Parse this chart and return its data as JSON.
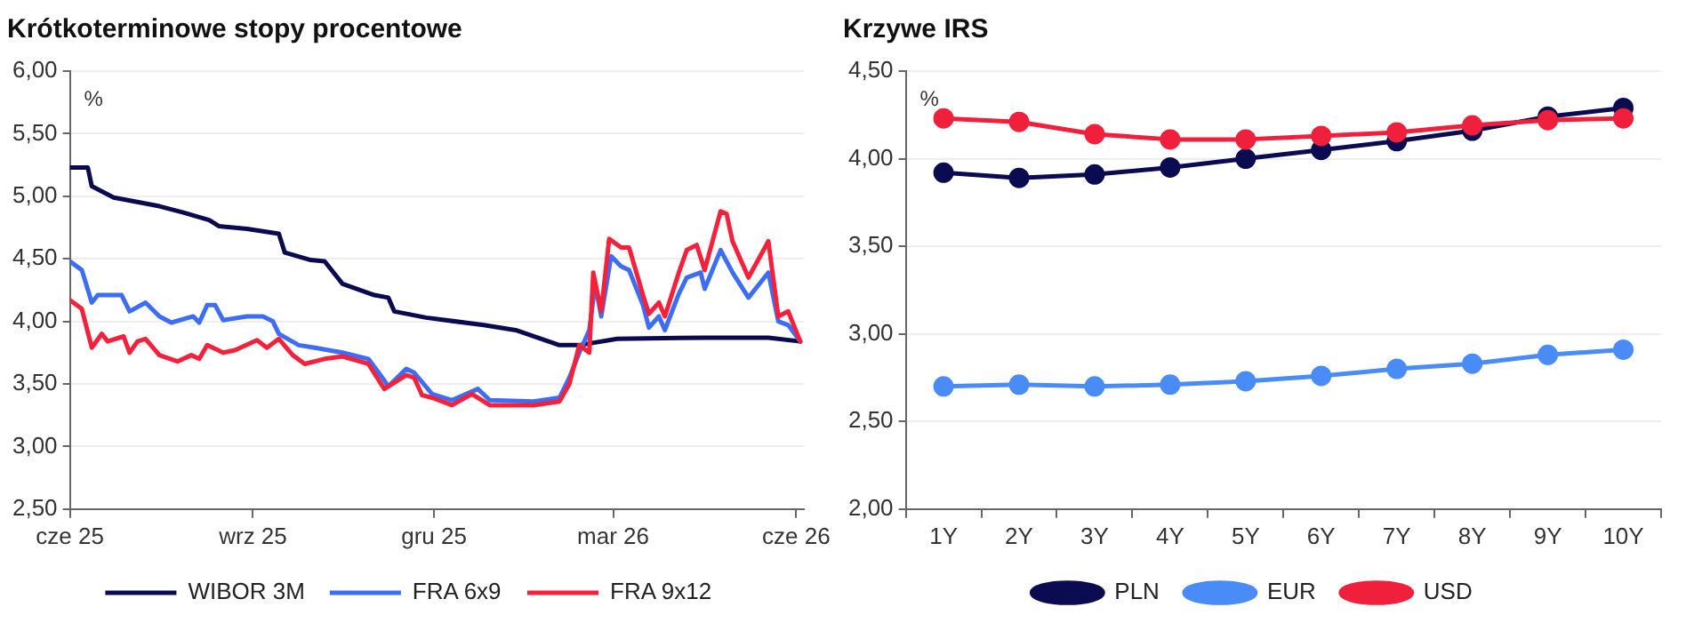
{
  "chart_data": [
    {
      "type": "line",
      "title": "Krótkoterminowe stopy procentowe",
      "annotations": [
        "%"
      ],
      "xlim": [
        "2025-06-01",
        "2026-06-05"
      ],
      "xticks": [
        {
          "value": "2025-06-01",
          "label": "cze 25"
        },
        {
          "value": "2025-09-01",
          "label": "wrz 25"
        },
        {
          "value": "2025-12-01",
          "label": "gru 25"
        },
        {
          "value": "2026-03-01",
          "label": "mar 26"
        },
        {
          "value": "2026-06-01",
          "label": "cze 26"
        }
      ],
      "ylim": [
        2.5,
        6
      ],
      "yticks": [
        {
          "value": 2.5,
          "label": "2,50"
        },
        {
          "value": 3,
          "label": "3,00"
        },
        {
          "value": 3.5,
          "label": "3,50"
        },
        {
          "value": 4,
          "label": "4,00"
        },
        {
          "value": 4.5,
          "label": "4,50"
        },
        {
          "value": 5,
          "label": "5,00"
        },
        {
          "value": 5.5,
          "label": "5,50"
        },
        {
          "value": 6,
          "label": "6,00"
        }
      ],
      "grid": "y",
      "legend": "bottom",
      "marker": "none",
      "line_style": "solid",
      "series": [
        {
          "name": "WIBOR 3M",
          "color": "#0a0a50",
          "x": [
            "2025-06-01",
            "2025-06-10",
            "2025-06-12",
            "2025-06-23",
            "2025-07-16",
            "2025-07-28",
            "2025-08-10",
            "2025-08-15",
            "2025-08-29",
            "2025-09-14",
            "2025-09-17",
            "2025-09-30",
            "2025-10-07",
            "2025-10-16",
            "2025-11-01",
            "2025-11-08",
            "2025-11-11",
            "2025-11-27",
            "2025-12-26",
            "2026-01-11",
            "2026-02-02",
            "2026-02-12",
            "2026-03-03",
            "2026-04-17",
            "2026-05-18",
            "2026-06-03"
          ],
          "values": [
            5.23,
            5.23,
            5.08,
            4.99,
            4.92,
            4.87,
            4.81,
            4.76,
            4.74,
            4.7,
            4.55,
            4.49,
            4.48,
            4.3,
            4.21,
            4.19,
            4.08,
            4.03,
            3.97,
            3.93,
            3.81,
            3.81,
            3.86,
            3.87,
            3.87,
            3.84
          ]
        },
        {
          "name": "FRA 6x9",
          "color": "#3d6cf5",
          "x": [
            "2025-06-01",
            "2025-06-07",
            "2025-06-12",
            "2025-06-15",
            "2025-06-27",
            "2025-07-01",
            "2025-07-09",
            "2025-07-16",
            "2025-07-22",
            "2025-08-02",
            "2025-08-05",
            "2025-08-09",
            "2025-08-13",
            "2025-08-17",
            "2025-08-29",
            "2025-09-06",
            "2025-09-11",
            "2025-09-14",
            "2025-09-24",
            "2025-10-02",
            "2025-10-16",
            "2025-10-29",
            "2025-11-05",
            "2025-11-08",
            "2025-11-17",
            "2025-11-21",
            "2025-11-30",
            "2025-12-10",
            "2025-12-23",
            "2025-12-29",
            "2026-01-20",
            "2026-02-02",
            "2026-02-07",
            "2026-02-12",
            "2026-02-17",
            "2026-02-20",
            "2026-02-23",
            "2026-02-28",
            "2026-03-05",
            "2026-03-09",
            "2026-03-16",
            "2026-03-19",
            "2026-03-24",
            "2026-03-27",
            "2026-04-03",
            "2026-04-07",
            "2026-04-14",
            "2026-04-16",
            "2026-04-24",
            "2026-04-30",
            "2026-05-08",
            "2026-05-18",
            "2026-05-23",
            "2026-05-28",
            "2026-06-03"
          ],
          "values": [
            4.48,
            4.41,
            4.15,
            4.21,
            4.21,
            4.08,
            4.15,
            4.04,
            3.99,
            4.04,
            3.99,
            4.13,
            4.13,
            4.01,
            4.04,
            4.04,
            4.0,
            3.9,
            3.81,
            3.79,
            3.75,
            3.7,
            3.55,
            3.48,
            3.62,
            3.59,
            3.42,
            3.37,
            3.46,
            3.37,
            3.36,
            3.39,
            3.55,
            3.75,
            3.93,
            4.3,
            4.04,
            4.52,
            4.44,
            4.41,
            4.13,
            3.95,
            4.04,
            3.93,
            4.22,
            4.35,
            4.39,
            4.26,
            4.57,
            4.39,
            4.19,
            4.39,
            4.0,
            3.97,
            3.84
          ]
        },
        {
          "name": "FRA 9x12",
          "color": "#f5203a",
          "x": [
            "2025-06-01",
            "2025-06-07",
            "2025-06-12",
            "2025-06-17",
            "2025-06-20",
            "2025-06-28",
            "2025-07-01",
            "2025-07-05",
            "2025-07-09",
            "2025-07-16",
            "2025-07-25",
            "2025-08-01",
            "2025-08-05",
            "2025-08-09",
            "2025-08-17",
            "2025-08-23",
            "2025-09-03",
            "2025-09-08",
            "2025-09-14",
            "2025-09-21",
            "2025-09-27",
            "2025-10-07",
            "2025-10-16",
            "2025-10-29",
            "2025-11-06",
            "2025-11-17",
            "2025-11-21",
            "2025-11-25",
            "2025-11-30",
            "2025-12-10",
            "2025-12-20",
            "2025-12-29",
            "2026-01-20",
            "2026-02-02",
            "2026-02-07",
            "2026-02-12",
            "2026-02-17",
            "2026-02-19",
            "2026-02-23",
            "2026-02-27",
            "2026-03-05",
            "2026-03-09",
            "2026-03-16",
            "2026-03-19",
            "2026-03-24",
            "2026-03-27",
            "2026-04-03",
            "2026-04-07",
            "2026-04-12",
            "2026-04-16",
            "2026-04-24",
            "2026-04-27",
            "2026-04-30",
            "2026-05-08",
            "2026-05-18",
            "2026-05-23",
            "2026-05-28",
            "2026-06-03"
          ],
          "values": [
            4.17,
            4.1,
            3.79,
            3.9,
            3.84,
            3.88,
            3.75,
            3.84,
            3.86,
            3.73,
            3.68,
            3.73,
            3.7,
            3.81,
            3.75,
            3.77,
            3.85,
            3.79,
            3.86,
            3.73,
            3.66,
            3.7,
            3.72,
            3.66,
            3.46,
            3.57,
            3.55,
            3.41,
            3.39,
            3.33,
            3.42,
            3.33,
            3.33,
            3.36,
            3.5,
            3.81,
            3.75,
            4.39,
            4.08,
            4.66,
            4.59,
            4.59,
            4.21,
            4.06,
            4.15,
            4.04,
            4.39,
            4.57,
            4.61,
            4.41,
            4.88,
            4.86,
            4.64,
            4.35,
            4.64,
            4.04,
            4.08,
            3.84
          ]
        }
      ]
    },
    {
      "type": "line",
      "title": "Krzywe IRS",
      "annotations": [
        "%"
      ],
      "categories": [
        "1Y",
        "2Y",
        "3Y",
        "4Y",
        "5Y",
        "6Y",
        "7Y",
        "8Y",
        "9Y",
        "10Y"
      ],
      "ylim": [
        2,
        4.5
      ],
      "yticks": [
        {
          "value": 2,
          "label": "2,00"
        },
        {
          "value": 2.5,
          "label": "2,50"
        },
        {
          "value": 3,
          "label": "3,00"
        },
        {
          "value": 3.5,
          "label": "3,50"
        },
        {
          "value": 4,
          "label": "4,00"
        },
        {
          "value": 4.5,
          "label": "4,50"
        }
      ],
      "grid": "y",
      "legend": "bottom",
      "marker": "circle",
      "line_style": "solid",
      "series": [
        {
          "name": "PLN",
          "color": "#0b0b52",
          "values": [
            3.92,
            3.89,
            3.91,
            3.95,
            4.0,
            4.05,
            4.1,
            4.16,
            4.24,
            4.29
          ]
        },
        {
          "name": "EUR",
          "color": "#4a8cf7",
          "values": [
            2.7,
            2.71,
            2.7,
            2.71,
            2.73,
            2.76,
            2.8,
            2.83,
            2.88,
            2.91
          ]
        },
        {
          "name": "USD",
          "color": "#f0203c",
          "values": [
            4.23,
            4.21,
            4.14,
            4.11,
            4.11,
            4.13,
            4.15,
            4.19,
            4.22,
            4.23
          ]
        }
      ]
    }
  ]
}
